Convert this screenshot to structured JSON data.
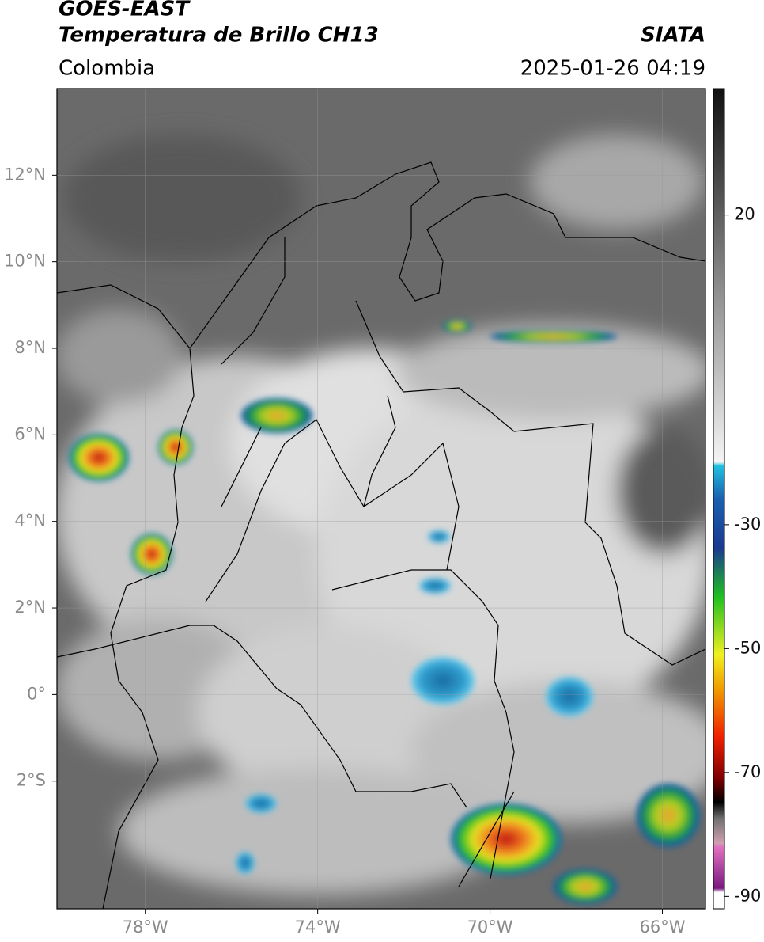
{
  "header": {
    "title": "GOES-EAST",
    "subtitle": "Temperatura de Brillo CH13",
    "region": "Colombia",
    "source": "SIATA",
    "datetime": "2025-01-26 04:19"
  },
  "map": {
    "xlim": [
      -80.05,
      -65
    ],
    "ylim": [
      -4.95,
      14
    ],
    "xticks": [
      {
        "value": -78,
        "label": "78°W"
      },
      {
        "value": -74,
        "label": "74°W"
      },
      {
        "value": -70,
        "label": "70°W"
      },
      {
        "value": -66,
        "label": "66°W"
      }
    ],
    "yticks": [
      {
        "value": 12,
        "label": "12°N"
      },
      {
        "value": 10,
        "label": "10°N"
      },
      {
        "value": 8,
        "label": "8°N"
      },
      {
        "value": 6,
        "label": "6°N"
      },
      {
        "value": 4,
        "label": "4°N"
      },
      {
        "value": 2,
        "label": "2°N"
      },
      {
        "value": 0,
        "label": "0°"
      },
      {
        "value": -2,
        "label": "2°S"
      }
    ],
    "grid": true
  },
  "colorbar": {
    "lim": [
      -92,
      40.4
    ],
    "ticks": [
      20,
      -30,
      -50,
      -70,
      -90
    ]
  }
}
